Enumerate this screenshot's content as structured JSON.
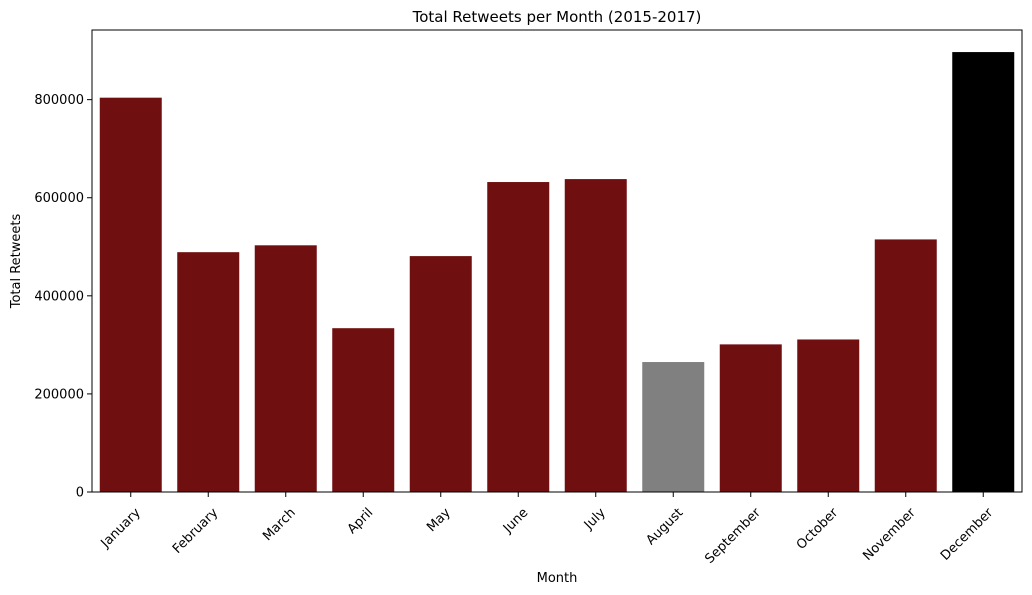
{
  "chart_data": {
    "type": "bar",
    "title": "Total Retweets per Month (2015-2017)",
    "xlabel": "Month",
    "ylabel": "Total Retweets",
    "categories": [
      "January",
      "February",
      "March",
      "April",
      "May",
      "June",
      "July",
      "August",
      "September",
      "October",
      "November",
      "December"
    ],
    "values": [
      804000,
      489000,
      503000,
      334000,
      481000,
      632000,
      638000,
      265000,
      301000,
      311000,
      515000,
      897000
    ],
    "bar_colors": [
      "#700f10",
      "#700f10",
      "#700f10",
      "#700f10",
      "#700f10",
      "#700f10",
      "#700f10",
      "#808080",
      "#700f10",
      "#700f10",
      "#700f10",
      "#000000"
    ],
    "ylim": [
      0,
      942000
    ],
    "yticks": [
      0,
      200000,
      400000,
      600000,
      800000
    ],
    "ytick_labels": [
      "0",
      "200000",
      "400000",
      "600000",
      "800000"
    ],
    "grid": false,
    "legend": "none"
  }
}
